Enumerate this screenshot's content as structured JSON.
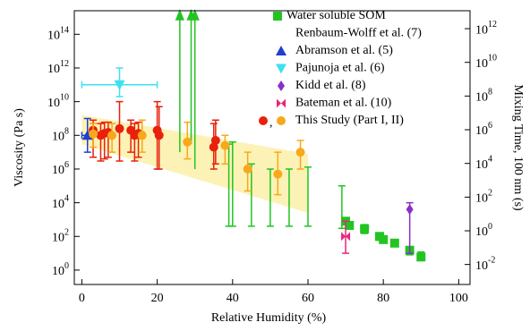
{
  "chart_data": {
    "type": "scatter",
    "xlabel": "Relative Humidity (%)",
    "ylabel": "Viscosity (Pa s)",
    "y2label": "Mixing Time, 100 nm (s)",
    "xlim": [
      -2,
      103
    ],
    "xticks": [
      0,
      20,
      40,
      60,
      80,
      100
    ],
    "ylim": [
      0.14,
      2500000000000000.0
    ],
    "log_y": true,
    "yticks": [
      {
        "value": 1,
        "label": "10^0"
      },
      {
        "value": 100,
        "label": "10^2"
      },
      {
        "value": 10000,
        "label": "10^4"
      },
      {
        "value": 1000000,
        "label": "10^6"
      },
      {
        "value": 100000000,
        "label": "10^8"
      },
      {
        "value": 10000000000,
        "label": "10^10"
      },
      {
        "value": 1000000000000,
        "label": "10^12"
      },
      {
        "value": 100000000000000,
        "label": "10^14"
      }
    ],
    "y2lim": [
      0.00065,
      11600000000000.0
    ],
    "y2ticks": [
      {
        "value": 0.01,
        "label": "10^-2"
      },
      {
        "value": 1,
        "label": "10^0"
      },
      {
        "value": 100,
        "label": "10^2"
      },
      {
        "value": 10000,
        "label": "10^4"
      },
      {
        "value": 1000000,
        "label": "10^6"
      },
      {
        "value": 100000000,
        "label": "10^8"
      },
      {
        "value": 10000000000,
        "label": "10^10"
      },
      {
        "value": 1000000000000,
        "label": "10^12"
      }
    ],
    "band": {
      "color": "#fbf0a8",
      "x": [
        0,
        60
      ],
      "upper": [
        1600000000,
        8000000
      ],
      "lower": [
        30000000,
        2500
      ]
    },
    "legend_separator": ",",
    "series": [
      {
        "name": "Water soluble SOM",
        "citation": "Renbaum-Wolff et al. (7)",
        "color": "#22c422",
        "marker": "square",
        "x": [
          70,
          71,
          75,
          79,
          80,
          83,
          87,
          90
        ],
        "values": [
          800,
          450,
          280,
          100,
          65,
          40,
          15,
          6
        ],
        "err_low": [
          500,
          300,
          150,
          60,
          40,
          25,
          8,
          4
        ],
        "err_high": [
          1000,
          600,
          500,
          150,
          100,
          60,
          25,
          12
        ],
        "range_x": [
          39,
          40,
          45,
          50,
          55,
          60,
          69
        ],
        "range_low": [
          400,
          400,
          400,
          400,
          400,
          400,
          300
        ],
        "range_high": [
          30000000,
          40000000,
          2000000,
          1000000,
          1000000,
          1300000,
          100000
        ],
        "limit_x": [
          26,
          29,
          30
        ],
        "limit_values": [
          10000000,
          30000000,
          1000000
        ]
      },
      {
        "name": "Abramson et al. (5)",
        "color": "#1f3fd0",
        "marker": "triangle-up",
        "x": [
          1.5
        ],
        "values": [
          100000000
        ],
        "err_low": [
          10000000
        ],
        "err_high": [
          1000000000
        ],
        "x_err_low": [
          0
        ],
        "x_err_high": [
          3
        ]
      },
      {
        "name": "Pajunoja et al. (6)",
        "color": "#3fe0f0",
        "marker": "triangle-down",
        "x": [
          10
        ],
        "values": [
          100000000000
        ],
        "err_low": [
          20000000000
        ],
        "err_high": [
          1000000000000
        ],
        "x_err_low": [
          0
        ],
        "x_err_high": [
          20
        ]
      },
      {
        "name": "Kidd et al. (8)",
        "color": "#8b2fc9",
        "marker": "diamond",
        "x": [
          87
        ],
        "values": [
          4000
        ],
        "err_low": [
          10
        ],
        "err_high": [
          10000
        ]
      },
      {
        "name": "Bateman et al. (10)",
        "color": "#e8267a",
        "marker": "bowtie",
        "x": [
          70
        ],
        "values": [
          100
        ],
        "err_low": [
          10
        ],
        "err_high": [
          800
        ]
      },
      {
        "name": "This Study (Part I, II)",
        "color": "#e8200c",
        "marker": "circle",
        "x": [
          3,
          5,
          6,
          7,
          10,
          13,
          14,
          15,
          20,
          20.5,
          35,
          35.5
        ],
        "values": [
          200000000,
          100000000,
          130000000,
          150000000,
          250000000,
          200000000,
          100000000,
          130000000,
          200000000,
          100000000,
          20000000,
          50000000
        ],
        "err_low": [
          5000000,
          3000000,
          4000000,
          5000000,
          3000000,
          10000000,
          3000000,
          5000000,
          1000000,
          1000000,
          1000000,
          2000000
        ],
        "err_high": [
          800000000,
          500000000,
          600000000,
          600000000,
          10000000000,
          800000000,
          500000000,
          600000000,
          10000000000,
          5000000000,
          500000000,
          800000000
        ]
      },
      {
        "color": "#f7a81b",
        "marker": "circle",
        "x": [
          3,
          8,
          16,
          28,
          38,
          44,
          52,
          58
        ],
        "values": [
          120000000,
          100000000,
          100000000,
          40000000,
          25000000,
          1000000,
          500000,
          10000000
        ],
        "err_low": [
          20000000,
          10000000,
          10000000,
          4000000,
          2000000,
          50000,
          30000,
          1000000
        ],
        "err_high": [
          500000000,
          500000000,
          800000000,
          600000000,
          100000000,
          10000000,
          10000000,
          50000000
        ]
      }
    ]
  }
}
